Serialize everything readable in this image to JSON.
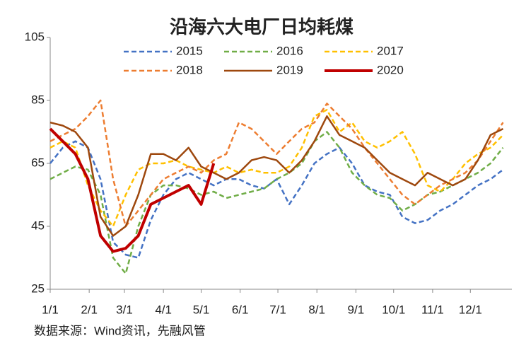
{
  "chart_data": {
    "type": "line",
    "title": "沿海六大电厂日均耗煤",
    "source": "数据来源：Wind资讯，先融风管",
    "x": [
      0,
      10,
      20,
      30,
      40,
      50,
      60,
      70,
      80,
      90,
      100,
      110,
      120,
      130,
      140,
      150,
      160,
      170,
      180,
      190,
      200,
      210,
      220,
      230,
      240,
      250,
      260,
      270,
      280,
      290,
      300,
      310,
      320,
      330,
      340,
      350,
      360
    ],
    "xlim": [
      0,
      367
    ],
    "xticks": [
      {
        "value": 0,
        "label": "1/1"
      },
      {
        "value": 31,
        "label": "2/1"
      },
      {
        "value": 59,
        "label": "3/1"
      },
      {
        "value": 90,
        "label": "4/1"
      },
      {
        "value": 120,
        "label": "5/1"
      },
      {
        "value": 151,
        "label": "6/1"
      },
      {
        "value": 181,
        "label": "7/1"
      },
      {
        "value": 212,
        "label": "8/1"
      },
      {
        "value": 243,
        "label": "9/1"
      },
      {
        "value": 273,
        "label": "10/1"
      },
      {
        "value": 304,
        "label": "11/1"
      },
      {
        "value": 334,
        "label": "12/1"
      }
    ],
    "ylim": [
      25,
      105
    ],
    "yticks": [
      25,
      45,
      65,
      85,
      105
    ],
    "series": [
      {
        "name": "2015",
        "color": "#4472c4",
        "dashed": true,
        "values": [
          65,
          70,
          72,
          70,
          60,
          40,
          36,
          35,
          47,
          55,
          60,
          62,
          60,
          58,
          60,
          60,
          58,
          57,
          60,
          52,
          58,
          65,
          68,
          70,
          65,
          58,
          56,
          55,
          48,
          46,
          47,
          50,
          52,
          55,
          58,
          60,
          63
        ]
      },
      {
        "name": "2016",
        "color": "#70ad47",
        "dashed": true,
        "values": [
          60,
          62,
          64,
          63,
          55,
          35,
          30,
          45,
          55,
          58,
          58,
          57,
          55,
          56,
          54,
          55,
          56,
          57,
          60,
          62,
          65,
          72,
          75,
          70,
          62,
          58,
          55,
          54,
          50,
          52,
          55,
          56,
          58,
          60,
          62,
          65,
          70
        ]
      },
      {
        "name": "2017",
        "color": "#ffc000",
        "dashed": true,
        "values": [
          70,
          72,
          70,
          58,
          50,
          45,
          55,
          63,
          65,
          65,
          66,
          64,
          63,
          62,
          64,
          62,
          63,
          62,
          62,
          64,
          70,
          80,
          82,
          75,
          78,
          72,
          70,
          72,
          75,
          68,
          58,
          56,
          60,
          65,
          68,
          70,
          74
        ]
      },
      {
        "name": "2018",
        "color": "#ed7d31",
        "dashed": true,
        "values": [
          72,
          74,
          76,
          80,
          85,
          60,
          45,
          50,
          55,
          60,
          62,
          64,
          62,
          66,
          68,
          78,
          76,
          72,
          68,
          72,
          76,
          78,
          84,
          80,
          76,
          70,
          65,
          60,
          55,
          52,
          55,
          58,
          60,
          62,
          66,
          72,
          78
        ]
      },
      {
        "name": "2019",
        "color": "#9e480e",
        "dashed": false,
        "values": [
          78,
          77,
          75,
          70,
          48,
          42,
          45,
          55,
          68,
          68,
          66,
          70,
          64,
          62,
          60,
          62,
          66,
          67,
          66,
          62,
          66,
          72,
          80,
          74,
          72,
          70,
          66,
          62,
          60,
          58,
          62,
          60,
          58,
          60,
          66,
          74,
          76
        ]
      },
      {
        "name": "2020",
        "color": "#c00000",
        "dashed": false,
        "values": [
          76,
          72,
          68,
          60,
          42,
          37,
          38,
          42,
          52,
          54,
          56,
          58,
          52,
          65,
          null,
          null,
          null,
          null,
          null,
          null,
          null,
          null,
          null,
          null,
          null,
          null,
          null,
          null,
          null,
          null,
          null,
          null,
          null,
          null,
          null,
          null,
          null
        ]
      }
    ]
  }
}
